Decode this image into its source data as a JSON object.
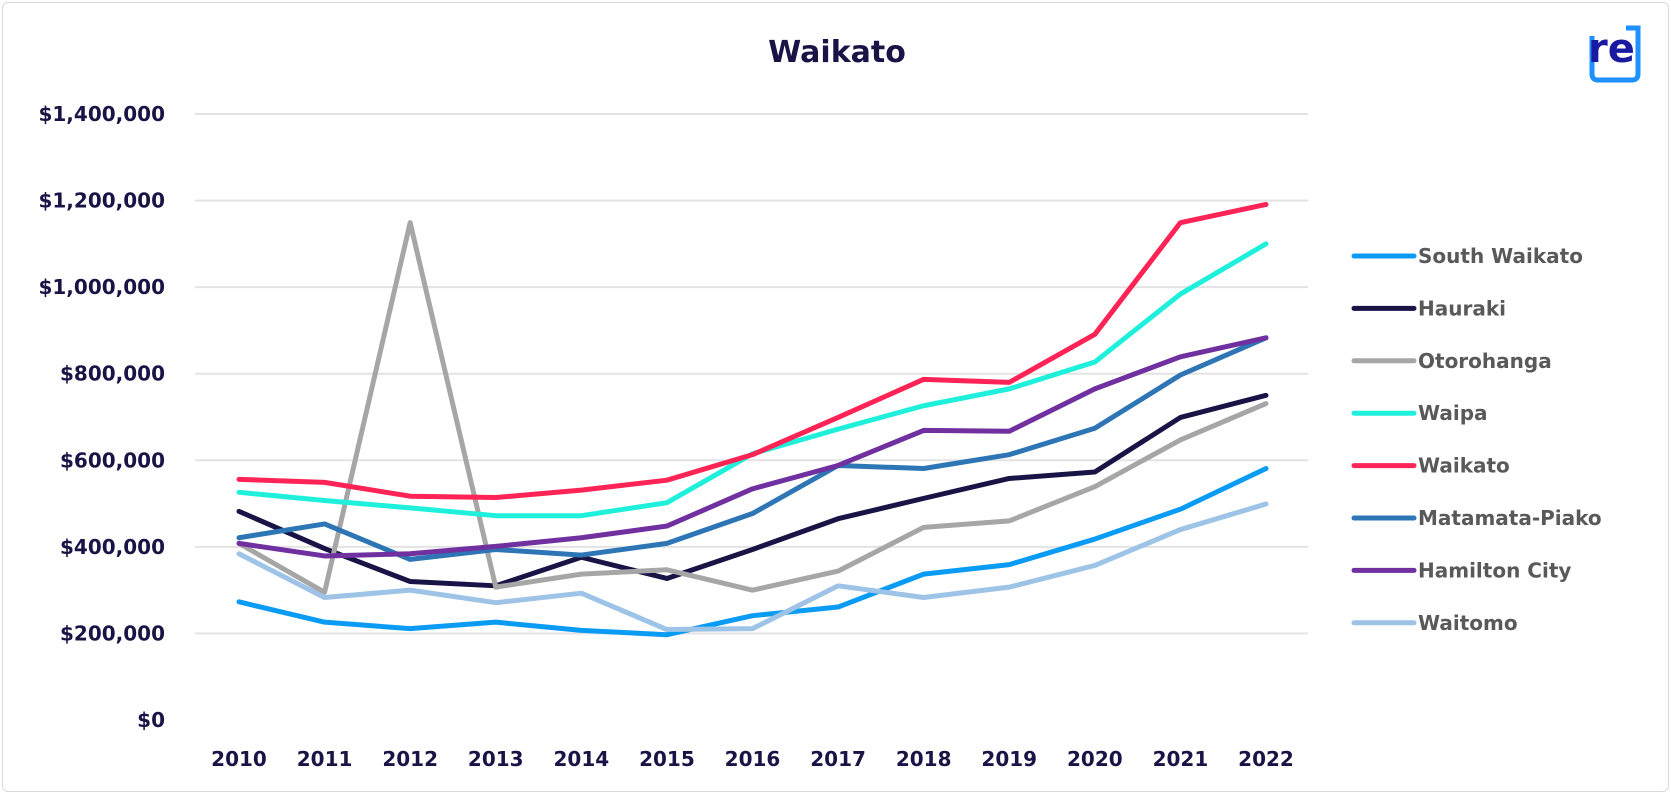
{
  "chart_data": {
    "type": "line",
    "title": "Waikato",
    "xlabel": "",
    "ylabel": "",
    "x": [
      "2010",
      "2011",
      "2012",
      "2013",
      "2014",
      "2015",
      "2016",
      "2017",
      "2018",
      "2019",
      "2020",
      "2021",
      "2022"
    ],
    "ylim": [
      0,
      1400000
    ],
    "yticks": [
      0,
      200000,
      400000,
      600000,
      800000,
      1000000,
      1200000,
      1400000
    ],
    "ytick_labels": [
      "$0",
      "$200,000",
      "$400,000",
      "$600,000",
      "$800,000",
      "$1,000,000",
      "$1,200,000",
      "$1,400,000"
    ],
    "grid": "horizontal",
    "legend_position": "right",
    "series": [
      {
        "name": "South Waikato",
        "color": "#0a9bf5",
        "values": [
          273000,
          226000,
          211000,
          226000,
          207000,
          197000,
          241000,
          261000,
          337000,
          359000,
          418000,
          487000,
          581000
        ]
      },
      {
        "name": "Hauraki",
        "color": "#1a1446",
        "values": [
          482000,
          396000,
          320000,
          310000,
          376000,
          327000,
          394000,
          465000,
          512000,
          558000,
          573000,
          699000,
          750000
        ]
      },
      {
        "name": "Otorohanga",
        "color": "#a6a6a6",
        "values": [
          408000,
          295000,
          1149000,
          307000,
          337000,
          347000,
          300000,
          344000,
          445000,
          460000,
          539000,
          647000,
          731000
        ]
      },
      {
        "name": "Waipa",
        "color": "#1ef0dc",
        "values": [
          526000,
          507000,
          490000,
          472000,
          472000,
          502000,
          615000,
          672000,
          726000,
          765000,
          827000,
          984000,
          1100000
        ]
      },
      {
        "name": "Waikato",
        "color": "#ff2455",
        "values": [
          556000,
          549000,
          517000,
          514000,
          531000,
          554000,
          613000,
          699000,
          787000,
          780000,
          891000,
          1149000,
          1191000
        ]
      },
      {
        "name": "Matamata-Piako",
        "color": "#2e75b6",
        "values": [
          421000,
          453000,
          371000,
          394000,
          381000,
          408000,
          477000,
          588000,
          581000,
          613000,
          674000,
          797000,
          883000
        ]
      },
      {
        "name": "Hamilton City",
        "color": "#7030a0",
        "values": [
          408000,
          379000,
          384000,
          401000,
          421000,
          448000,
          534000,
          588000,
          669000,
          667000,
          765000,
          839000,
          883000
        ]
      },
      {
        "name": "Waitomo",
        "color": "#9dc3e6",
        "values": [
          384000,
          283000,
          300000,
          271000,
          293000,
          209000,
          211000,
          310000,
          283000,
          307000,
          357000,
          440000,
          499000
        ]
      }
    ]
  },
  "logo": {
    "text": "re",
    "primary": "#1a1aa0",
    "accent": "#1e90ff"
  }
}
